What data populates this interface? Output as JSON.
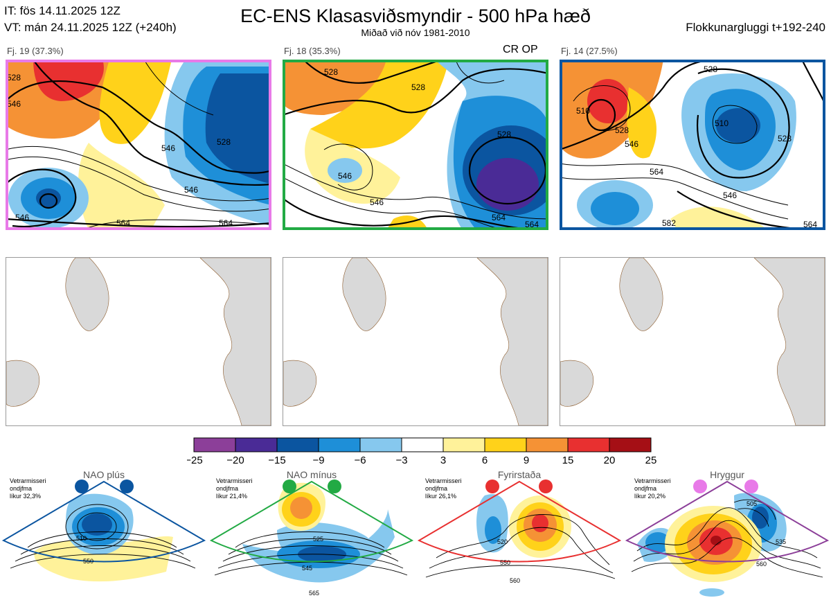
{
  "header": {
    "it_line": "IT: fös 14.11.2025 12Z",
    "vt_line": "VT: mán 24.11.2025 12Z  (+240h)",
    "title": "EC-ENS Klasasviðsmyndir - 500 hPa hæð",
    "subtitle": "Miðað við nóv 1981-2010",
    "window": "Flokkunargluggi t+192-240"
  },
  "panels": [
    {
      "label": "Fj. 19 (37.3%)",
      "tag": "",
      "border": "#e87ae8",
      "contours": [
        "528",
        "546",
        "546",
        "528",
        "546",
        "546",
        "564",
        "564"
      ]
    },
    {
      "label": "Fj. 18 (35.3%)",
      "tag": "CR OP",
      "border": "#22aa44",
      "contours": [
        "528",
        "528",
        "528",
        "546",
        "546",
        "564",
        "564"
      ]
    },
    {
      "label": "Fj. 14 (27.5%)",
      "tag": "",
      "border": "#0b55a0",
      "contours": [
        "528",
        "510",
        "528",
        "546",
        "510",
        "528",
        "564",
        "546",
        "582",
        "564"
      ]
    }
  ],
  "colorbar": {
    "ticks": [
      "−25",
      "−20",
      "−15",
      "−9",
      "−6",
      "−3",
      "3",
      "6",
      "9",
      "15",
      "20",
      "25"
    ],
    "colors": [
      "#8c3f99",
      "#4a2b96",
      "#0b55a0",
      "#1e8fd8",
      "#86c8ee",
      "#ffffff",
      "#fff29a",
      "#ffd21a",
      "#f59235",
      "#e83030",
      "#a50f15"
    ]
  },
  "regimes": [
    {
      "title": "NAO plús",
      "note": [
        "Vetrarmisseri",
        "ondjfma",
        "líkur 32,3%"
      ],
      "color": "#0b55a0",
      "contours": [
        "510",
        "550"
      ]
    },
    {
      "title": "NAO mínus",
      "note": [
        "Vetrarmisseri",
        "ondjfma",
        "líkur 21,4%"
      ],
      "color": "#22aa44",
      "contours": [
        "525",
        "545",
        "565"
      ]
    },
    {
      "title": "Fyrirstaða",
      "note": [
        "Vetrarmisseri",
        "ondjfma",
        "líkur 26,1%"
      ],
      "color": "#e83030",
      "contours": [
        "520",
        "550",
        "560"
      ]
    },
    {
      "title": "Hryggur",
      "note": [
        "Vetrarmisseri",
        "ondjfma",
        "líkur 20,2%"
      ],
      "color": "#e87ae8",
      "contours": [
        "505",
        "535",
        "560"
      ]
    }
  ]
}
